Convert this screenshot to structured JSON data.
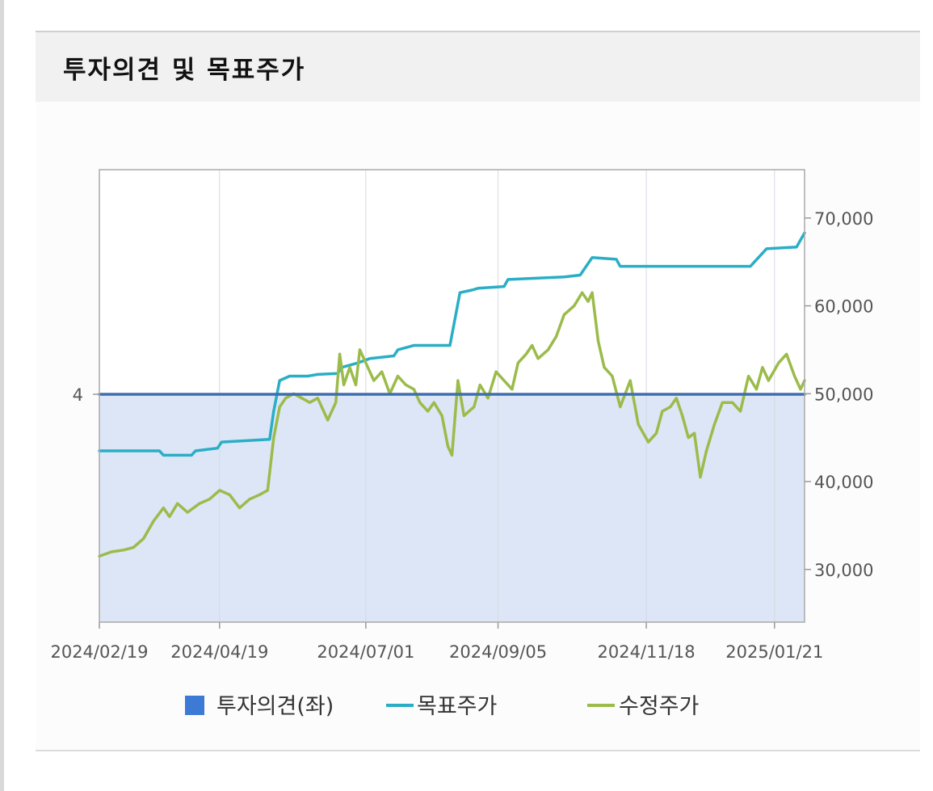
{
  "header": {
    "title": "투자의견 및 목표주가"
  },
  "chart_data": {
    "type": "line",
    "title": "",
    "x_ticks": [
      "2024/02/19",
      "2024/04/19",
      "2024/07/01",
      "2024/09/05",
      "2024/11/18",
      "2025/01/21"
    ],
    "x_range": [
      "2024/02/19",
      "2025/02/05"
    ],
    "left_axis": {
      "ticks": [
        "4"
      ],
      "value": 4
    },
    "right_axis": {
      "ticks": [
        "70,000",
        "60,000",
        "50,000",
        "40,000",
        "30,000"
      ],
      "range": [
        24000,
        75500
      ]
    },
    "grid": "vertical",
    "legend_position": "bottom",
    "legend": [
      "투자의견(좌)",
      "목표주가",
      "수정주가"
    ],
    "colors": {
      "opinion": "#3f6fb0",
      "opinion_fill": "#dce6f6",
      "target": "#2aaec6",
      "price": "#9bbb4a",
      "legend_opinion_box": "#3d7ad6"
    },
    "series": [
      {
        "name": "투자의견(좌)",
        "axis": "left",
        "points": [
          [
            "2024/02/19",
            4
          ],
          [
            "2025/02/05",
            4
          ]
        ]
      },
      {
        "name": "목표주가",
        "axis": "right",
        "points": [
          [
            "2024/02/19",
            43500
          ],
          [
            "2024/03/20",
            43500
          ],
          [
            "2024/03/22",
            43000
          ],
          [
            "2024/04/05",
            43000
          ],
          [
            "2024/04/07",
            43500
          ],
          [
            "2024/04/18",
            43800
          ],
          [
            "2024/04/20",
            44500
          ],
          [
            "2024/05/14",
            44800
          ],
          [
            "2024/05/16",
            48000
          ],
          [
            "2024/05/19",
            51500
          ],
          [
            "2024/05/24",
            52000
          ],
          [
            "2024/06/02",
            52000
          ],
          [
            "2024/06/07",
            52200
          ],
          [
            "2024/06/17",
            52300
          ],
          [
            "2024/06/19",
            53000
          ],
          [
            "2024/06/27",
            53500
          ],
          [
            "2024/07/03",
            54000
          ],
          [
            "2024/07/15",
            54300
          ],
          [
            "2024/07/17",
            55000
          ],
          [
            "2024/07/25",
            55500
          ],
          [
            "2024/08/12",
            55500
          ],
          [
            "2024/08/17",
            61500
          ],
          [
            "2024/08/23",
            61800
          ],
          [
            "2024/08/26",
            62000
          ],
          [
            "2024/09/08",
            62200
          ],
          [
            "2024/09/10",
            63000
          ],
          [
            "2024/10/08",
            63300
          ],
          [
            "2024/10/16",
            63500
          ],
          [
            "2024/10/22",
            65500
          ],
          [
            "2024/11/03",
            65300
          ],
          [
            "2024/11/05",
            64500
          ],
          [
            "2025/01/09",
            64500
          ],
          [
            "2025/01/17",
            66500
          ],
          [
            "2025/02/01",
            66700
          ],
          [
            "2025/02/05",
            68300
          ]
        ]
      },
      {
        "name": "수정주가",
        "axis": "right",
        "points": [
          [
            "2024/02/19",
            31500
          ],
          [
            "2024/02/25",
            32000
          ],
          [
            "2024/03/02",
            32200
          ],
          [
            "2024/03/07",
            32500
          ],
          [
            "2024/03/12",
            33500
          ],
          [
            "2024/03/17",
            35500
          ],
          [
            "2024/03/22",
            37000
          ],
          [
            "2024/03/25",
            36000
          ],
          [
            "2024/03/29",
            37500
          ],
          [
            "2024/04/03",
            36500
          ],
          [
            "2024/04/09",
            37500
          ],
          [
            "2024/04/14",
            38000
          ],
          [
            "2024/04/19",
            39000
          ],
          [
            "2024/04/24",
            38500
          ],
          [
            "2024/04/29",
            37000
          ],
          [
            "2024/05/04",
            38000
          ],
          [
            "2024/05/09",
            38500
          ],
          [
            "2024/05/13",
            39000
          ],
          [
            "2024/05/16",
            45000
          ],
          [
            "2024/05/19",
            48500
          ],
          [
            "2024/05/22",
            49500
          ],
          [
            "2024/05/26",
            50000
          ],
          [
            "2024/05/30",
            49500
          ],
          [
            "2024/06/03",
            49000
          ],
          [
            "2024/06/07",
            49500
          ],
          [
            "2024/06/12",
            47000
          ],
          [
            "2024/06/16",
            49000
          ],
          [
            "2024/06/18",
            54500
          ],
          [
            "2024/06/20",
            51000
          ],
          [
            "2024/06/23",
            53000
          ],
          [
            "2024/06/26",
            51000
          ],
          [
            "2024/06/28",
            55000
          ],
          [
            "2024/07/01",
            53500
          ],
          [
            "2024/07/05",
            51500
          ],
          [
            "2024/07/09",
            52500
          ],
          [
            "2024/07/13",
            50000
          ],
          [
            "2024/07/17",
            52000
          ],
          [
            "2024/07/21",
            51000
          ],
          [
            "2024/07/25",
            50500
          ],
          [
            "2024/07/28",
            49000
          ],
          [
            "2024/08/01",
            48000
          ],
          [
            "2024/08/04",
            49000
          ],
          [
            "2024/08/08",
            47500
          ],
          [
            "2024/08/11",
            44000
          ],
          [
            "2024/08/13",
            43000
          ],
          [
            "2024/08/16",
            51500
          ],
          [
            "2024/08/19",
            47500
          ],
          [
            "2024/08/24",
            48500
          ],
          [
            "2024/08/27",
            51000
          ],
          [
            "2024/08/31",
            49500
          ],
          [
            "2024/09/04",
            52500
          ],
          [
            "2024/09/08",
            51500
          ],
          [
            "2024/09/12",
            50500
          ],
          [
            "2024/09/15",
            53500
          ],
          [
            "2024/09/19",
            54500
          ],
          [
            "2024/09/22",
            55500
          ],
          [
            "2024/09/25",
            54000
          ],
          [
            "2024/09/30",
            55000
          ],
          [
            "2024/10/04",
            56500
          ],
          [
            "2024/10/08",
            59000
          ],
          [
            "2024/10/13",
            60000
          ],
          [
            "2024/10/17",
            61500
          ],
          [
            "2024/10/20",
            60500
          ],
          [
            "2024/10/22",
            61500
          ],
          [
            "2024/10/25",
            56000
          ],
          [
            "2024/10/28",
            53000
          ],
          [
            "2024/11/01",
            52000
          ],
          [
            "2024/11/05",
            48500
          ],
          [
            "2024/11/10",
            51500
          ],
          [
            "2024/11/14",
            46500
          ],
          [
            "2024/11/19",
            44500
          ],
          [
            "2024/11/23",
            45500
          ],
          [
            "2024/11/26",
            48000
          ],
          [
            "2024/11/30",
            48500
          ],
          [
            "2024/12/03",
            49500
          ],
          [
            "2024/12/06",
            47500
          ],
          [
            "2024/12/09",
            45000
          ],
          [
            "2024/12/12",
            45500
          ],
          [
            "2024/12/15",
            40500
          ],
          [
            "2024/12/18",
            43500
          ],
          [
            "2024/12/22",
            46500
          ],
          [
            "2024/12/26",
            49000
          ],
          [
            "2024/12/31",
            49000
          ],
          [
            "2025/01/04",
            48000
          ],
          [
            "2025/01/08",
            52000
          ],
          [
            "2025/01/12",
            50500
          ],
          [
            "2025/01/15",
            53000
          ],
          [
            "2025/01/18",
            51500
          ],
          [
            "2025/01/23",
            53500
          ],
          [
            "2025/01/27",
            54500
          ],
          [
            "2025/01/31",
            52000
          ],
          [
            "2025/02/03",
            50500
          ],
          [
            "2025/02/05",
            51500
          ]
        ]
      }
    ]
  }
}
